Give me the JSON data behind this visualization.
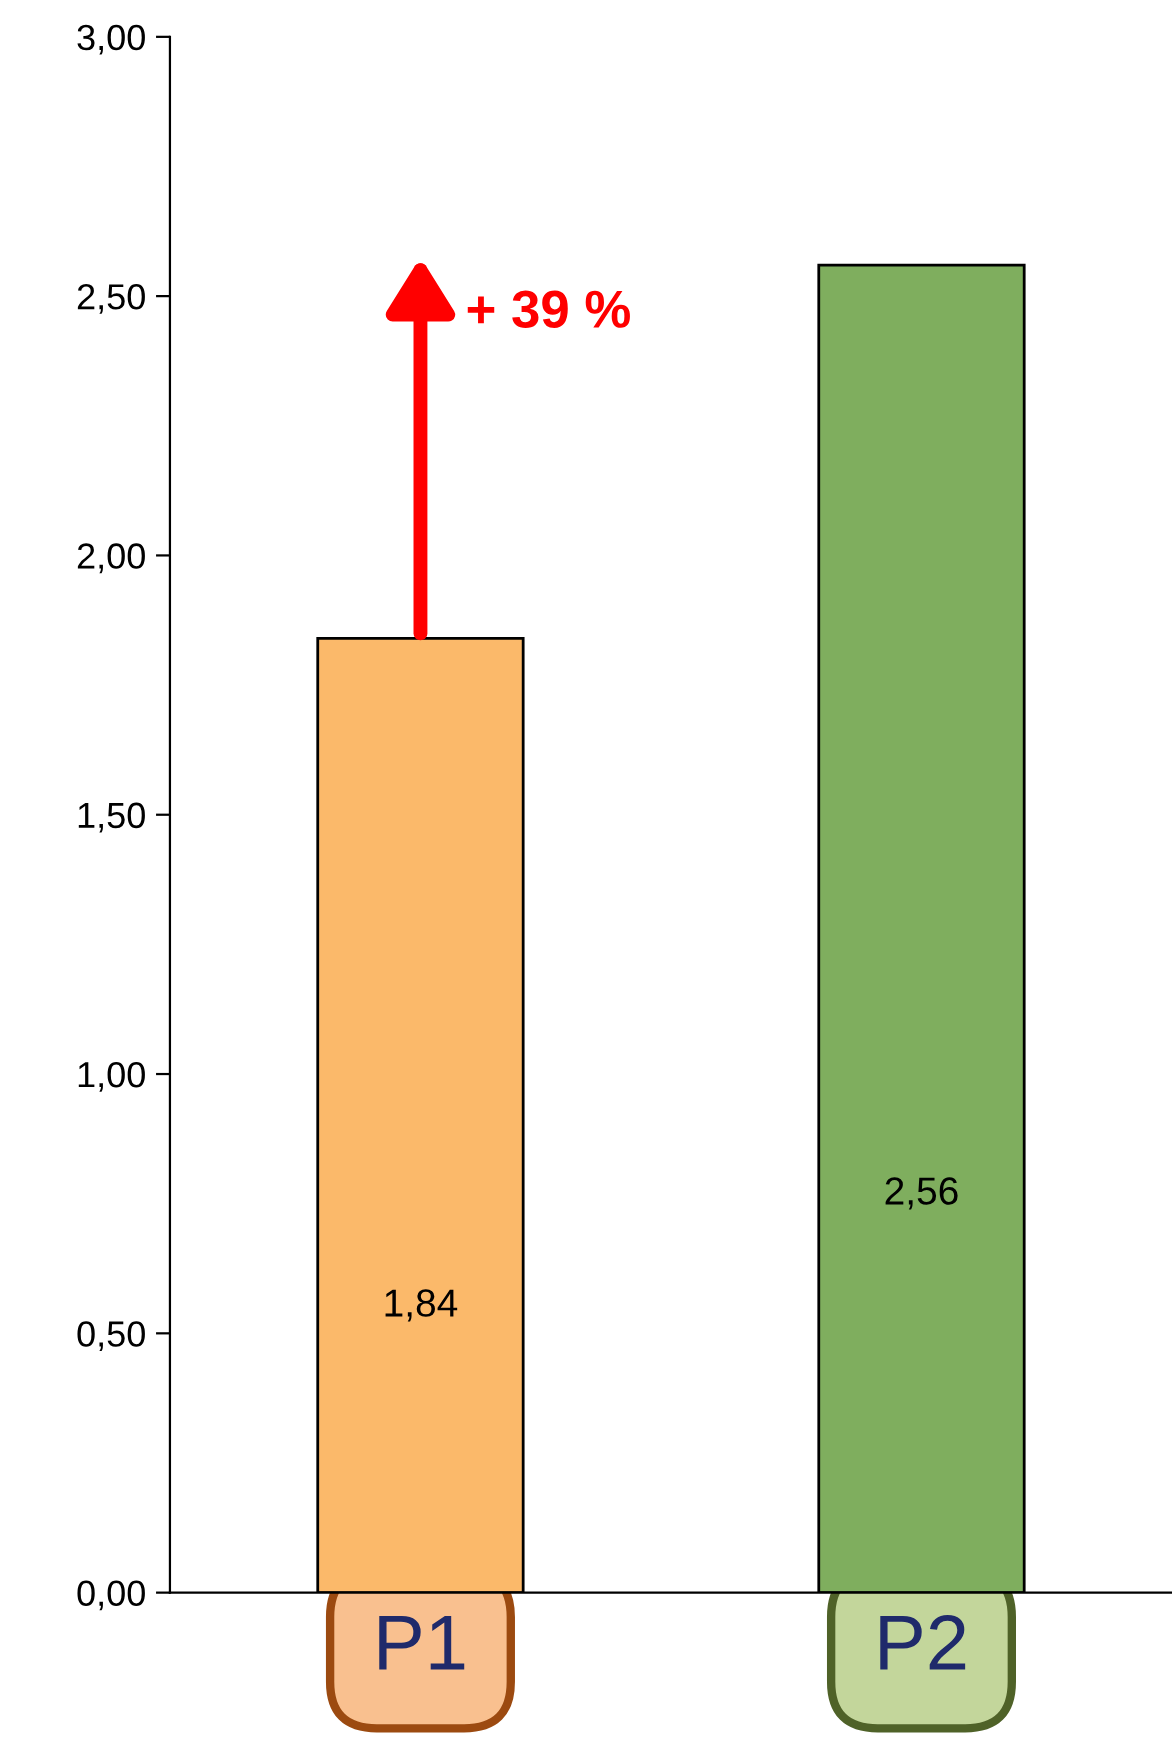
{
  "chart_data": {
    "type": "bar",
    "categories": [
      "P1",
      "P2"
    ],
    "values": [
      1.84,
      2.56
    ],
    "colors": [
      "#fbb96a",
      "#7fae5e"
    ],
    "data_labels": true,
    "value_labels": [
      "1,84",
      "2,56"
    ],
    "ylim": [
      0,
      3
    ],
    "yticks": [
      {
        "value": 0,
        "label": "0,00"
      },
      {
        "value": 0.5,
        "label": "0,50"
      },
      {
        "value": 1,
        "label": "1,00"
      },
      {
        "value": 1.5,
        "label": "1,50"
      },
      {
        "value": 2,
        "label": "2,00"
      },
      {
        "value": 2.5,
        "label": "2,50"
      },
      {
        "value": 3,
        "label": "3,00"
      }
    ],
    "annotations": [
      "+ 39 %"
    ],
    "grid": false,
    "legend": false
  }
}
